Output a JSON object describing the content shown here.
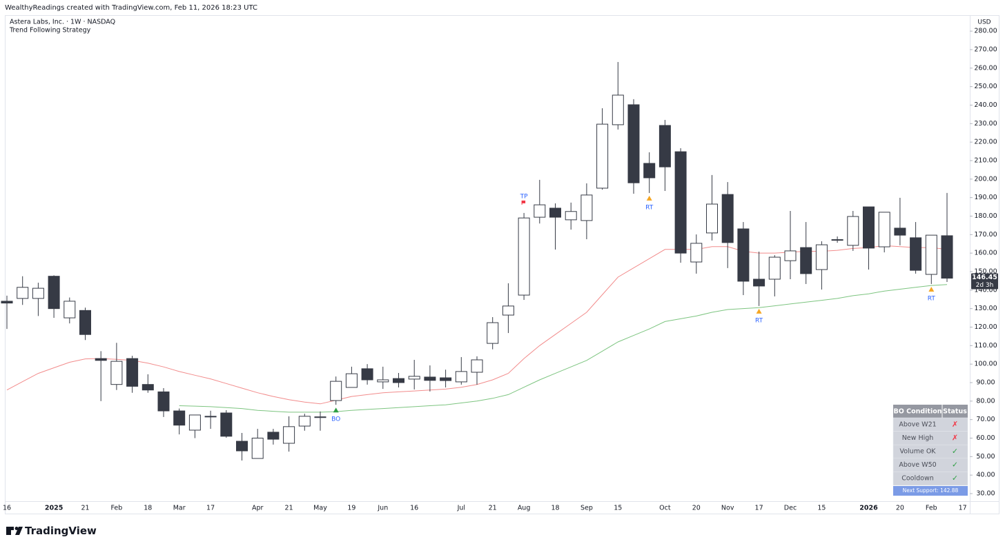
{
  "header": "WealthyReadings created with TradingView.com, Feb 11, 2026 18:23 UTC",
  "brand": "TradingView",
  "chart_data": {
    "type": "candlestick",
    "symbol": "Astera Labs, Inc. · 1W · NASDAQ",
    "indicator": "Trend Following Strategy",
    "currency": "USD",
    "countdown": "2d 3h",
    "categories": [
      "16",
      null,
      null,
      "2025",
      null,
      "21",
      null,
      "Feb",
      null,
      "18",
      null,
      "Mar",
      null,
      "17",
      null,
      null,
      "Apr",
      null,
      "21",
      null,
      "May",
      null,
      "19",
      null,
      "Jun",
      null,
      "16",
      null,
      null,
      "Jul",
      null,
      "21",
      null,
      "Aug",
      null,
      "18",
      null,
      "Sep",
      null,
      "15",
      null,
      null,
      "Oct",
      null,
      "20",
      null,
      "Nov",
      null,
      "17",
      null,
      "Dec",
      null,
      "15",
      null,
      null,
      "2026",
      null,
      "20",
      null,
      "Feb",
      null,
      "17"
    ],
    "open": [
      134,
      135.5,
      135.5,
      147.5,
      125,
      129,
      103,
      89,
      103,
      89,
      85,
      74.7,
      64.3,
      71.5,
      73.6,
      58.3,
      49,
      63.2,
      57.2,
      66.5,
      71.1,
      80.3,
      87.4,
      97.5,
      90.4,
      92.2,
      91.9,
      93,
      92.6,
      90.4,
      95.6,
      111.2,
      126.5,
      137.3,
      179.4,
      184.3,
      178,
      177.6,
      195.1,
      229.4,
      240.2,
      208.5,
      229,
      214.8,
      155.2,
      170.9,
      191.7,
      173.1,
      145.9,
      145.9,
      155.9,
      163,
      151.1,
      167.1,
      164.2,
      185,
      163.4,
      173.5,
      168.3,
      148.5,
      169.4,
      null
    ],
    "high": [
      137,
      147.5,
      144,
      148,
      136,
      130.5,
      107,
      111.5,
      104.5,
      94.5,
      87,
      76,
      72.5,
      74.8,
      75.1,
      62.8,
      65,
      65,
      71.8,
      73.2,
      74.4,
      93.3,
      98.6,
      100,
      98.6,
      95.2,
      102.3,
      99.3,
      97,
      103.8,
      104.2,
      125.4,
      143.7,
      181.7,
      199.6,
      186.9,
      187.3,
      197.7,
      238.3,
      263.3,
      243.2,
      214.5,
      232,
      216.7,
      170.1,
      202.2,
      198.4,
      176.8,
      160.8,
      158.9,
      182.8,
      176.8,
      166.4,
      169,
      182.8,
      185,
      182.1,
      189.9,
      176.8,
      169.7,
      192.5,
      null
    ],
    "low": [
      119,
      132,
      126,
      125,
      122,
      113,
      80,
      86,
      84.5,
      84.5,
      71.4,
      62,
      60,
      65,
      60.2,
      47.9,
      49,
      56.5,
      52.7,
      64,
      64,
      78,
      87.4,
      88.9,
      86.6,
      87.4,
      86.3,
      85.2,
      87.4,
      88.9,
      88.9,
      108,
      116.8,
      134.7,
      176,
      161.9,
      172.7,
      167.5,
      194.3,
      226.8,
      192.1,
      192.5,
      193.6,
      154.8,
      148.9,
      166.8,
      151.9,
      137.3,
      131.4,
      136.6,
      145.9,
      143.3,
      140.3,
      165.6,
      161.2,
      151.1,
      160.4,
      164.2,
      148.9,
      143.3,
      144.4,
      null
    ],
    "close": [
      133,
      141.5,
      141,
      130,
      134,
      116,
      102,
      101.5,
      88,
      86,
      74.7,
      67,
      72.5,
      71.8,
      61,
      53.1,
      60,
      59.4,
      66.2,
      71.8,
      71.5,
      90.7,
      94.8,
      91.5,
      91.5,
      90,
      93.4,
      91.2,
      91.1,
      96,
      102.3,
      122.4,
      131.4,
      179,
      186.1,
      179.4,
      182.5,
      191.4,
      229.7,
      245.4,
      198,
      200.7,
      206.6,
      160,
      165.3,
      186.5,
      165.7,
      144.8,
      142.2,
      157.8,
      161.2,
      148.9,
      164.5,
      167.3,
      179.8,
      162.7,
      182.1,
      169.7,
      150.7,
      169.7,
      146.45,
      null
    ],
    "up_color": "#ffffff",
    "down_color": "#363a45",
    "lines": [
      {
        "color": "#f28b8b",
        "values": [
          86,
          90.5,
          95,
          98,
          101,
          102.8,
          103,
          102.6,
          102,
          100.5,
          98.5,
          96,
          94,
          92,
          89.5,
          87,
          84.5,
          82.5,
          80.8,
          79.5,
          78.5,
          80.5,
          82.5,
          83.5,
          84.5,
          85,
          85.5,
          86,
          86.5,
          87.5,
          89,
          91.5,
          95,
          103,
          110,
          116,
          122,
          128,
          137.5,
          147,
          152,
          157,
          162,
          162,
          162,
          163.5,
          163.5,
          161,
          160,
          160,
          160.5,
          161,
          161,
          161.5,
          162.5,
          163,
          164,
          163.5,
          163,
          163,
          162,
          null
        ]
      },
      {
        "color": "#7cc47f",
        "values": [
          null,
          null,
          null,
          null,
          null,
          null,
          null,
          null,
          null,
          null,
          null,
          77.5,
          77.3,
          77,
          76.5,
          76,
          75,
          74.5,
          74,
          74,
          74,
          74.3,
          75,
          75.5,
          76,
          76.5,
          77,
          77.5,
          78,
          79,
          80,
          81.5,
          83.5,
          87.5,
          91.5,
          95,
          98.5,
          102,
          107,
          112,
          115.5,
          119,
          123,
          124.5,
          126,
          128,
          129.5,
          130,
          130.5,
          131.5,
          132.5,
          133.5,
          134.5,
          135.5,
          137,
          138,
          139.5,
          140.5,
          141.5,
          142.5,
          143,
          null
        ]
      }
    ],
    "signals": [
      {
        "index": 21,
        "label": "BO",
        "marker": "triangle",
        "color": "#2e9e44",
        "position": "below"
      },
      {
        "index": 33,
        "label": "TP",
        "marker": "flag",
        "color": "#f23645",
        "position": "above"
      },
      {
        "index": 41,
        "label": "RT",
        "marker": "triangle",
        "color": "#f5a623",
        "position": "below"
      },
      {
        "index": 48,
        "label": "RT",
        "marker": "triangle",
        "color": "#f5a623",
        "position": "below"
      },
      {
        "index": 59,
        "label": "RT",
        "marker": "triangle",
        "color": "#f5a623",
        "position": "below"
      }
    ],
    "ylim": [
      25.9,
      287.5
    ],
    "yticks": [
      {
        "value": 30,
        "label": "30.00"
      },
      {
        "value": 40,
        "label": "40.00"
      },
      {
        "value": 50,
        "label": "50.00"
      },
      {
        "value": 60,
        "label": "60.00"
      },
      {
        "value": 70,
        "label": "70.00"
      },
      {
        "value": 80,
        "label": "80.00"
      },
      {
        "value": 90,
        "label": "90.00"
      },
      {
        "value": 100,
        "label": "100.00"
      },
      {
        "value": 110,
        "label": "110.00"
      },
      {
        "value": 120,
        "label": "120.00"
      },
      {
        "value": 130,
        "label": "130.00"
      },
      {
        "value": 140,
        "label": "140.00"
      },
      {
        "value": 150,
        "label": "150.00"
      },
      {
        "value": 160,
        "label": "160.00"
      },
      {
        "value": 170,
        "label": "170.00"
      },
      {
        "value": 180,
        "label": "180.00"
      },
      {
        "value": 190,
        "label": "190.00"
      },
      {
        "value": 200,
        "label": "200.00"
      },
      {
        "value": 210,
        "label": "210.00"
      },
      {
        "value": 220,
        "label": "220.00"
      },
      {
        "value": 230,
        "label": "230.00"
      },
      {
        "value": 240,
        "label": "240.00"
      },
      {
        "value": 250,
        "label": "250.00"
      },
      {
        "value": 260,
        "label": "260.00"
      },
      {
        "value": 270,
        "label": "270.00"
      },
      {
        "value": 280,
        "label": "280.00"
      }
    ],
    "grid": false,
    "table": {
      "header": [
        "BO Condition",
        "Status"
      ],
      "rows": [
        {
          "label": "Above W21",
          "status": "✗",
          "color": "#f23645"
        },
        {
          "label": "New High",
          "status": "✗",
          "color": "#f23645"
        },
        {
          "label": "Volume OK",
          "status": "✓",
          "color": "#2e9e44"
        },
        {
          "label": "Above W50",
          "status": "✓",
          "color": "#2e9e44"
        },
        {
          "label": "Cooldown",
          "status": "✓",
          "color": "#2e9e44"
        }
      ],
      "footer": "Next Support: 142.88"
    }
  }
}
